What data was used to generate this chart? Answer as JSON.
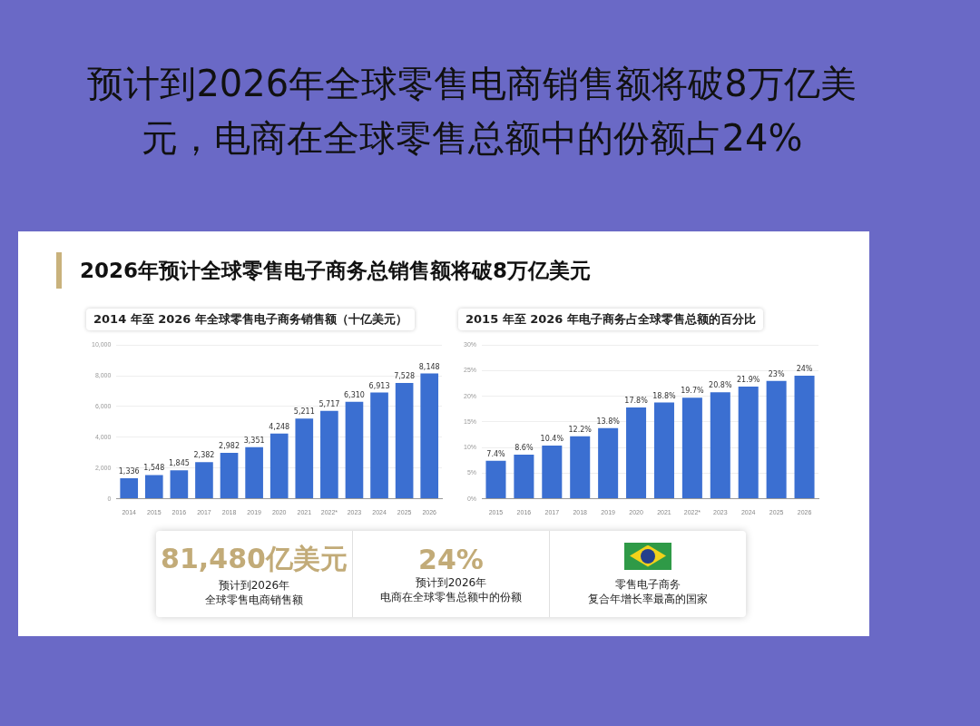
{
  "chart_data": [
    {
      "type": "other",
      "title": "预计到2026年全球零售电商销售额将破8万亿美元，电商在全球零售总额中的份额占24%",
      "subtitle": "2026年预计全球零售电子商务总销售额将破8万亿美元"
    },
    {
      "type": "bar",
      "title": "2014 年至 2026 年全球零售电子商务销售额（十亿美元）",
      "categories": [
        "2014",
        "2015",
        "2016",
        "2017",
        "2018",
        "2019",
        "2020",
        "2021",
        "2022*",
        "2023",
        "2024",
        "2025",
        "2026"
      ],
      "values": [
        1336,
        1548,
        1845,
        2382,
        2982,
        3351,
        4248,
        5211,
        5717,
        6310,
        6913,
        7528,
        8148
      ],
      "value_labels": [
        "1,336",
        "1,548",
        "1,845",
        "2,382",
        "2,982",
        "3,351",
        "4,248",
        "5,211",
        "5,717",
        "6,310",
        "6,913",
        "7,528",
        "8,148"
      ],
      "color": "#3b6fd1",
      "ylim": [
        0,
        10000
      ],
      "yticks": [
        0,
        {
          "value": 2000,
          "label": "2,000"
        },
        {
          "value": 4000,
          "label": "4,000"
        },
        {
          "value": 6000,
          "label": "6,000"
        },
        {
          "value": 8000,
          "label": "8,000"
        },
        {
          "value": 10000,
          "label": "10,000"
        }
      ],
      "grid": "y"
    },
    {
      "type": "bar",
      "title": "2015 年至 2026 年电子商务占全球零售总额的百分比",
      "categories": [
        "2015",
        "2016",
        "2017",
        "2018",
        "2019",
        "2020",
        "2021",
        "2022*",
        "2023",
        "2024",
        "2025",
        "2026"
      ],
      "values": [
        7.4,
        8.6,
        10.4,
        12.2,
        13.8,
        17.8,
        18.8,
        19.7,
        20.8,
        21.9,
        23,
        24
      ],
      "value_labels": [
        "7.4%",
        "8.6%",
        "10.4%",
        "12.2%",
        "13.8%",
        "17.8%",
        "18.8%",
        "19.7%",
        "20.8%",
        "21.9%",
        "23%",
        "24%"
      ],
      "color": "#3b6fd1",
      "ylim": [
        0,
        30
      ],
      "yticks": [
        {
          "value": 0,
          "label": "0%"
        },
        {
          "value": 5,
          "label": "5%"
        },
        {
          "value": 10,
          "label": "10%"
        },
        {
          "value": 15,
          "label": "15%"
        },
        {
          "value": 20,
          "label": "20%"
        },
        {
          "value": 25,
          "label": "25%"
        },
        {
          "value": 30,
          "label": "30%"
        }
      ],
      "grid": "y"
    },
    {
      "type": "other",
      "annotations": [
        "81,480亿美元",
        "预计到2026年",
        "全球零售电商销售额",
        "24%",
        "预计到2026年",
        "电商在全球零售总额中的份额",
        "零售电子商务",
        "复合年增长率最高的国家"
      ]
    }
  ]
}
